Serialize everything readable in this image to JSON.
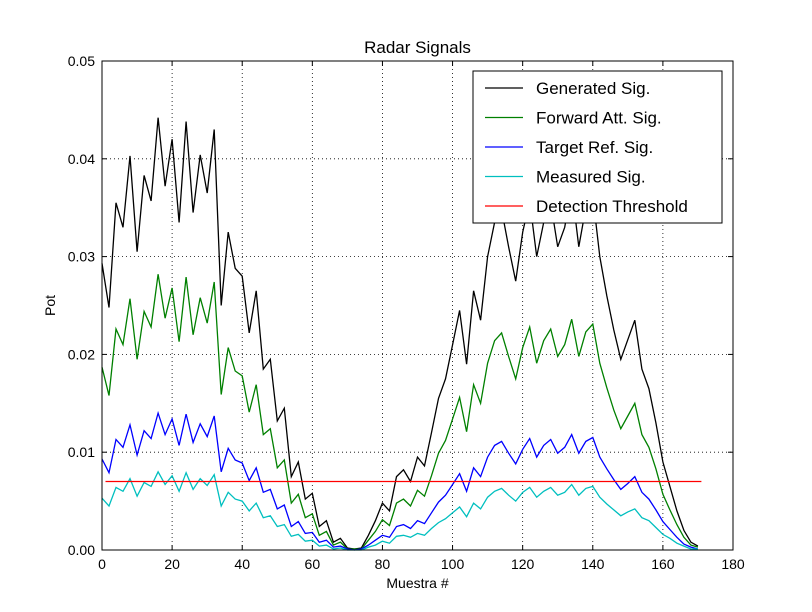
{
  "chart_data": {
    "type": "line",
    "title": "Radar Signals",
    "xlabel": "Muestra #",
    "ylabel": "Pot",
    "xlim": [
      0,
      180
    ],
    "ylim": [
      0,
      0.05
    ],
    "xticks": [
      0,
      20,
      40,
      60,
      80,
      100,
      120,
      140,
      160,
      180
    ],
    "yticks": [
      0.0,
      0.01,
      0.02,
      0.03,
      0.04,
      0.05
    ],
    "xtick_labels": [
      "0",
      "20",
      "40",
      "60",
      "80",
      "100",
      "120",
      "140",
      "160",
      "180"
    ],
    "ytick_labels": [
      "0.00",
      "0.01",
      "0.02",
      "0.03",
      "0.04",
      "0.05"
    ],
    "grid": true,
    "legend_position": "top-right",
    "x": [
      0,
      2,
      4,
      6,
      8,
      10,
      12,
      14,
      16,
      18,
      20,
      22,
      24,
      26,
      28,
      30,
      32,
      34,
      36,
      38,
      40,
      42,
      44,
      46,
      48,
      50,
      52,
      54,
      56,
      58,
      60,
      62,
      64,
      66,
      68,
      70,
      72,
      74,
      76,
      78,
      80,
      82,
      84,
      86,
      88,
      90,
      92,
      94,
      96,
      98,
      100,
      102,
      104,
      106,
      108,
      110,
      112,
      114,
      116,
      118,
      120,
      122,
      124,
      126,
      128,
      130,
      132,
      134,
      136,
      138,
      140,
      142,
      144,
      146,
      148,
      150,
      152,
      154,
      156,
      158,
      160,
      162,
      164,
      166,
      168,
      170
    ],
    "series": [
      {
        "name": "Generated Sig.",
        "color": "#000000",
        "values": [
          0.0293,
          0.0248,
          0.0355,
          0.033,
          0.0403,
          0.0305,
          0.0383,
          0.0357,
          0.0442,
          0.0372,
          0.042,
          0.0335,
          0.0438,
          0.0345,
          0.0404,
          0.0365,
          0.043,
          0.025,
          0.0325,
          0.0288,
          0.028,
          0.0222,
          0.0265,
          0.0185,
          0.0195,
          0.0132,
          0.0145,
          0.0075,
          0.009,
          0.0052,
          0.0058,
          0.0024,
          0.003,
          0.0008,
          0.0012,
          0.0002,
          0.0001,
          0.0002,
          0.0015,
          0.003,
          0.0048,
          0.004,
          0.0075,
          0.0082,
          0.007,
          0.0095,
          0.0086,
          0.012,
          0.0155,
          0.0175,
          0.021,
          0.0245,
          0.019,
          0.0265,
          0.0235,
          0.03,
          0.0335,
          0.0348,
          0.031,
          0.0275,
          0.0325,
          0.0357,
          0.03,
          0.0335,
          0.0355,
          0.031,
          0.033,
          0.037,
          0.031,
          0.035,
          0.0362,
          0.03,
          0.026,
          0.0225,
          0.0195,
          0.0215,
          0.0235,
          0.0185,
          0.0165,
          0.013,
          0.009,
          0.0065,
          0.004,
          0.002,
          0.0008,
          0.0004
        ]
      },
      {
        "name": "Forward Att. Sig.",
        "color": "#008000",
        "values": [
          0.0187,
          0.0158,
          0.0226,
          0.021,
          0.0257,
          0.0195,
          0.0244,
          0.0228,
          0.0282,
          0.0237,
          0.0268,
          0.0213,
          0.0279,
          0.022,
          0.0258,
          0.0232,
          0.0274,
          0.0159,
          0.0207,
          0.0183,
          0.0178,
          0.0141,
          0.0169,
          0.0118,
          0.0124,
          0.0084,
          0.0092,
          0.0048,
          0.0057,
          0.0033,
          0.0037,
          0.0015,
          0.0019,
          0.0005,
          0.0008,
          0.0001,
          0.0001,
          0.0001,
          0.001,
          0.0019,
          0.0031,
          0.0025,
          0.0048,
          0.0052,
          0.0045,
          0.0061,
          0.0055,
          0.0076,
          0.0099,
          0.0112,
          0.0134,
          0.0156,
          0.0121,
          0.0169,
          0.015,
          0.0191,
          0.0214,
          0.0222,
          0.0198,
          0.0175,
          0.0207,
          0.0228,
          0.0191,
          0.0214,
          0.0226,
          0.0198,
          0.021,
          0.0236,
          0.0198,
          0.0223,
          0.0231,
          0.0191,
          0.0166,
          0.0143,
          0.0124,
          0.0137,
          0.015,
          0.0118,
          0.0105,
          0.0083,
          0.0057,
          0.0041,
          0.0026,
          0.0013,
          0.0005,
          0.0003
        ]
      },
      {
        "name": "Target Ref. Sig.",
        "color": "#0000ff",
        "values": [
          0.0093,
          0.0079,
          0.0113,
          0.0105,
          0.0128,
          0.0097,
          0.0122,
          0.0114,
          0.014,
          0.0118,
          0.0134,
          0.0107,
          0.0139,
          0.011,
          0.0129,
          0.0116,
          0.0137,
          0.008,
          0.0104,
          0.0092,
          0.0089,
          0.0071,
          0.0084,
          0.0059,
          0.0062,
          0.0042,
          0.0046,
          0.0024,
          0.0029,
          0.0017,
          0.0018,
          0.0008,
          0.001,
          0.0003,
          0.0004,
          0.0001,
          0.0,
          0.0001,
          0.0005,
          0.001,
          0.0015,
          0.0013,
          0.0024,
          0.0026,
          0.0022,
          0.003,
          0.0027,
          0.0038,
          0.0049,
          0.0056,
          0.0067,
          0.0078,
          0.006,
          0.0084,
          0.0075,
          0.0095,
          0.0107,
          0.0111,
          0.0099,
          0.0088,
          0.0103,
          0.0114,
          0.0095,
          0.0107,
          0.0113,
          0.0099,
          0.0105,
          0.0118,
          0.0099,
          0.0111,
          0.0115,
          0.0095,
          0.0083,
          0.0072,
          0.0062,
          0.0068,
          0.0075,
          0.0059,
          0.0052,
          0.0041,
          0.0029,
          0.0021,
          0.0013,
          0.0006,
          0.0003,
          0.0001
        ]
      },
      {
        "name": "Measured Sig.",
        "color": "#00bfbf",
        "values": [
          0.0053,
          0.0045,
          0.0064,
          0.006,
          0.0073,
          0.0055,
          0.0069,
          0.0065,
          0.008,
          0.0067,
          0.0076,
          0.006,
          0.0079,
          0.0062,
          0.0073,
          0.0066,
          0.0077,
          0.0045,
          0.0059,
          0.0052,
          0.005,
          0.004,
          0.0048,
          0.0033,
          0.0035,
          0.0024,
          0.0026,
          0.0014,
          0.0016,
          0.0009,
          0.001,
          0.0004,
          0.0005,
          0.0001,
          0.0002,
          0.0,
          0.0,
          0.0,
          0.0003,
          0.0005,
          0.0009,
          0.0007,
          0.0014,
          0.0015,
          0.0013,
          0.0017,
          0.0015,
          0.0022,
          0.0028,
          0.0032,
          0.0038,
          0.0044,
          0.0034,
          0.0048,
          0.0042,
          0.0054,
          0.006,
          0.0063,
          0.0056,
          0.005,
          0.0059,
          0.0064,
          0.0054,
          0.006,
          0.0064,
          0.0056,
          0.0059,
          0.0067,
          0.0056,
          0.0063,
          0.0065,
          0.0054,
          0.0047,
          0.0041,
          0.0035,
          0.0039,
          0.0042,
          0.0033,
          0.003,
          0.0023,
          0.0016,
          0.0012,
          0.0007,
          0.0004,
          0.0001,
          0.0001
        ]
      },
      {
        "name": "Detection Threshold",
        "color": "#ff0000",
        "constant": 0.007,
        "x_range": [
          1,
          171
        ]
      }
    ]
  }
}
